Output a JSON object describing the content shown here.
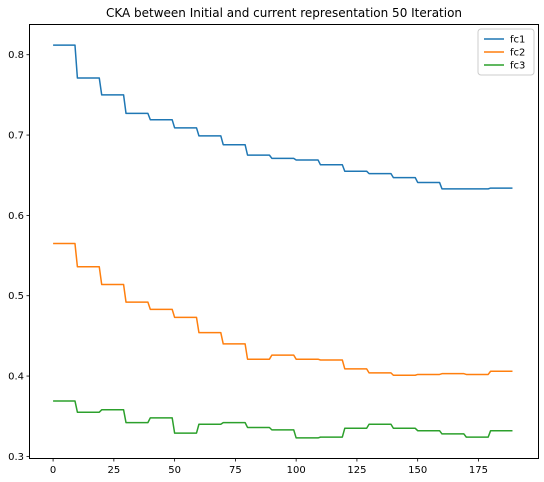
{
  "chart_data": {
    "type": "line",
    "title": "CKA between Initial and current representation 50 Iteration",
    "xlabel": "",
    "ylabel": "",
    "xlim": [
      -9.5,
      199.5
    ],
    "ylim": [
      0.298,
      0.837
    ],
    "xticks": [
      0,
      25,
      50,
      75,
      100,
      125,
      150,
      175
    ],
    "yticks": [
      0.3,
      0.4,
      0.5,
      0.6,
      0.7,
      0.8
    ],
    "grid": false,
    "legend_position": "top-right",
    "x": [
      0,
      1,
      2,
      3,
      4,
      5,
      6,
      7,
      8,
      9,
      10,
      11,
      12,
      13,
      14,
      15,
      16,
      17,
      18,
      19,
      20,
      21,
      22,
      23,
      24,
      25,
      26,
      27,
      28,
      29,
      30,
      31,
      32,
      33,
      34,
      35,
      36,
      37,
      38,
      39,
      40,
      41,
      42,
      43,
      44,
      45,
      46,
      47,
      48,
      49,
      50,
      51,
      52,
      53,
      54,
      55,
      56,
      57,
      58,
      59,
      60,
      61,
      62,
      63,
      64,
      65,
      66,
      67,
      68,
      69,
      70,
      71,
      72,
      73,
      74,
      75,
      76,
      77,
      78,
      79,
      80,
      81,
      82,
      83,
      84,
      85,
      86,
      87,
      88,
      89,
      90,
      91,
      92,
      93,
      94,
      95,
      96,
      97,
      98,
      99,
      100,
      101,
      102,
      103,
      104,
      105,
      106,
      107,
      108,
      109,
      110,
      111,
      112,
      113,
      114,
      115,
      116,
      117,
      118,
      119,
      120,
      121,
      122,
      123,
      124,
      125,
      126,
      127,
      128,
      129,
      130,
      131,
      132,
      133,
      134,
      135,
      136,
      137,
      138,
      139,
      140,
      141,
      142,
      143,
      144,
      145,
      146,
      147,
      148,
      149,
      150,
      151,
      152,
      153,
      154,
      155,
      156,
      157,
      158,
      159,
      160,
      161,
      162,
      163,
      164,
      165,
      166,
      167,
      168,
      169,
      170,
      171,
      172,
      173,
      174,
      175,
      176,
      177,
      178,
      179,
      180,
      181,
      182,
      183,
      184,
      185,
      186,
      187,
      188,
      189
    ],
    "series": [
      {
        "name": "fc1",
        "color": "#1f77b4",
        "step_values": [
          0.812,
          0.771,
          0.75,
          0.727,
          0.719,
          0.709,
          0.699,
          0.688,
          0.675,
          0.671,
          0.669,
          0.663,
          0.655,
          0.652,
          0.647,
          0.641,
          0.633,
          0.633,
          0.634
        ]
      },
      {
        "name": "fc2",
        "color": "#ff7f0e",
        "step_values": [
          0.565,
          0.536,
          0.514,
          0.492,
          0.483,
          0.473,
          0.454,
          0.44,
          0.421,
          0.426,
          0.421,
          0.42,
          0.409,
          0.404,
          0.401,
          0.402,
          0.403,
          0.402,
          0.406
        ]
      },
      {
        "name": "fc3",
        "color": "#2ca02c",
        "step_values": [
          0.369,
          0.355,
          0.358,
          0.342,
          0.348,
          0.329,
          0.34,
          0.342,
          0.336,
          0.333,
          0.323,
          0.324,
          0.335,
          0.34,
          0.335,
          0.332,
          0.328,
          0.324,
          0.332
        ]
      }
    ]
  }
}
